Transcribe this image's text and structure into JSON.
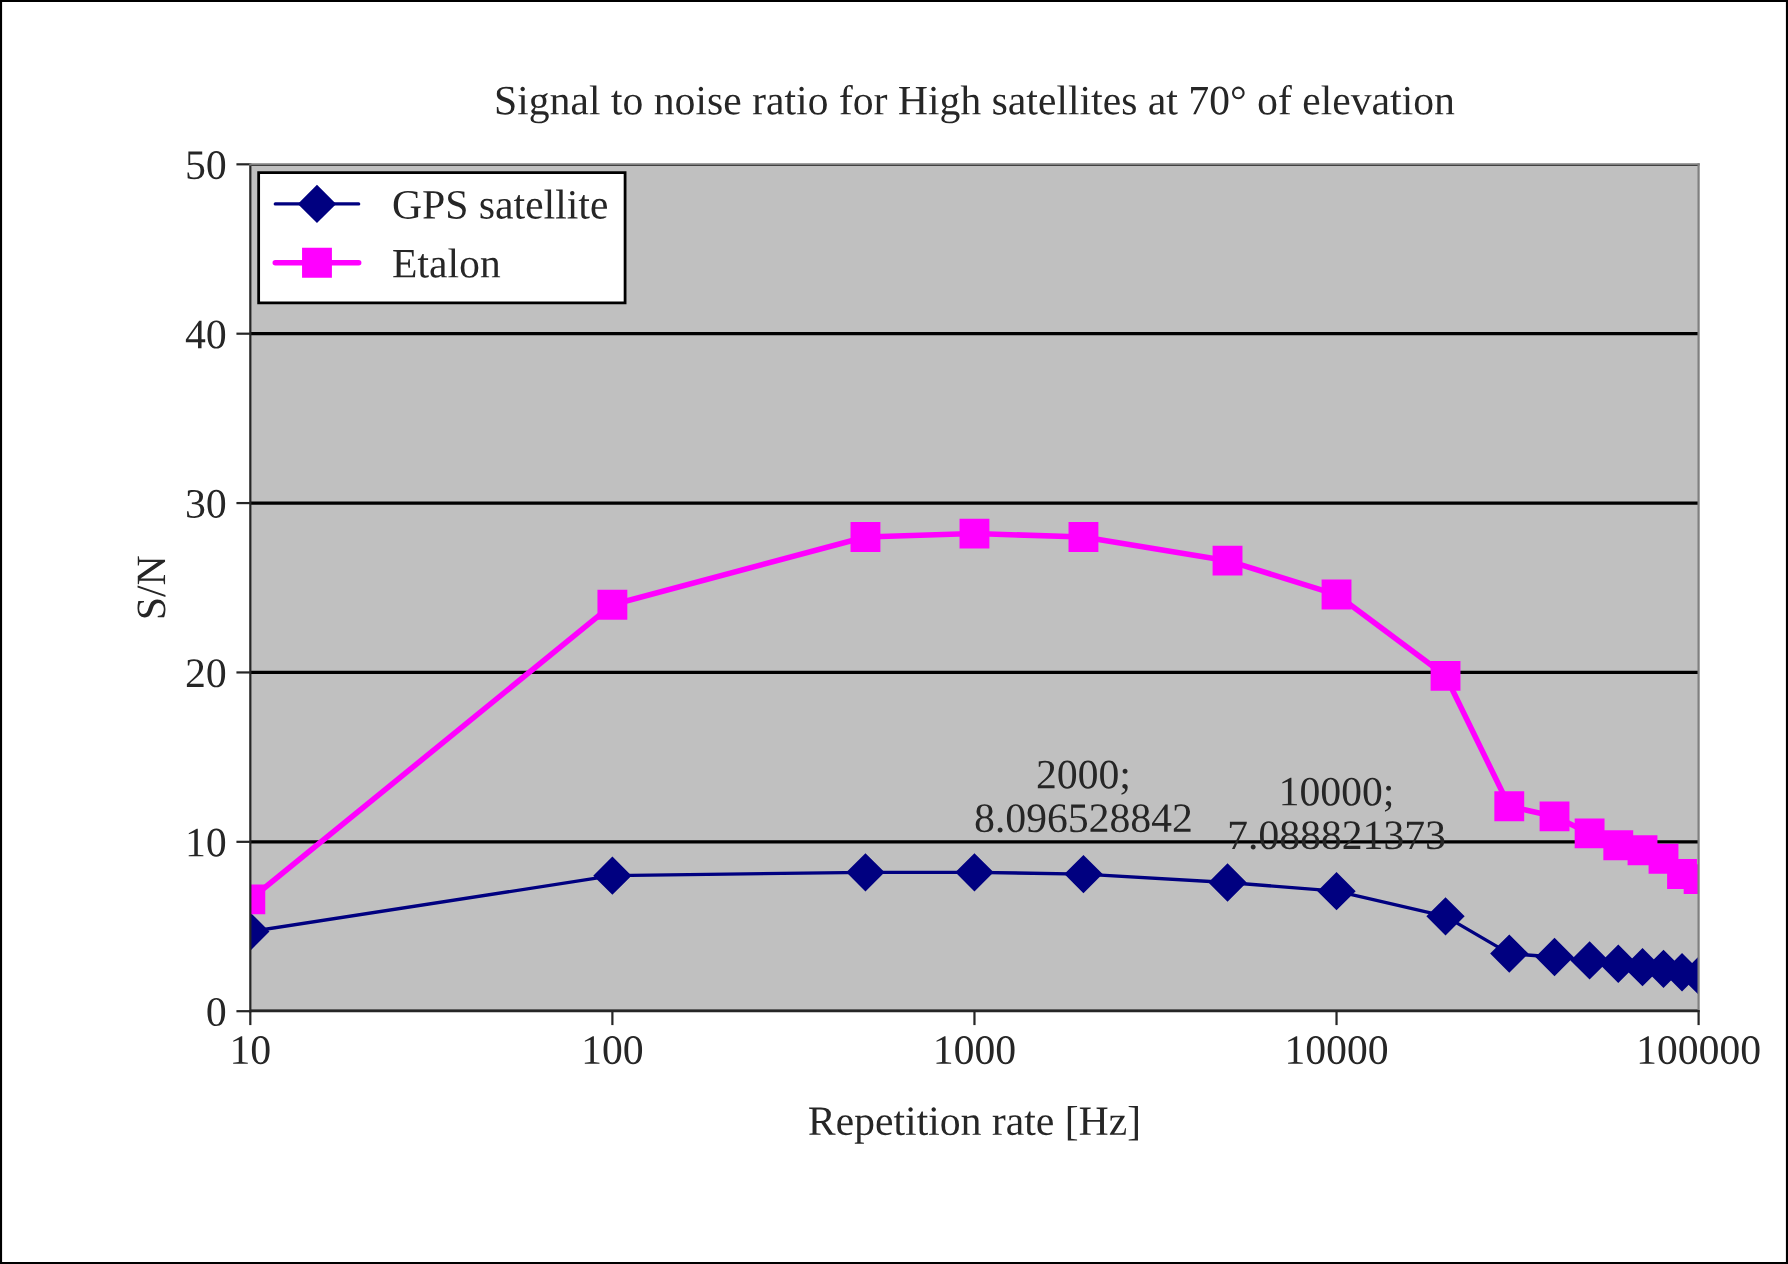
{
  "chart_data": {
    "type": "line",
    "title": "Signal to noise ratio for High satellites at 70° of elevation",
    "xlabel": "Repetition rate [Hz]",
    "ylabel": "S/N",
    "x": [
      10,
      100,
      500,
      1000,
      2000,
      5000,
      10000,
      20000,
      30000,
      40000,
      50000,
      60000,
      70000,
      80000,
      90000,
      100000
    ],
    "series": [
      {
        "name": "GPS satellite",
        "color": "#000080",
        "marker": "diamond",
        "values": [
          4.7,
          8.0,
          8.2,
          8.2,
          8.096528842,
          7.6,
          7.088821373,
          5.6,
          3.4,
          3.2,
          3.0,
          2.8,
          2.6,
          2.5,
          2.3,
          2.1
        ]
      },
      {
        "name": "Etalon",
        "color": "#ff00ff",
        "marker": "square",
        "values": [
          6.6,
          24.0,
          28.0,
          28.2,
          28.0,
          26.6,
          24.6,
          19.8,
          12.1,
          11.5,
          10.5,
          9.8,
          9.5,
          9.0,
          8.1,
          7.8
        ]
      }
    ],
    "annotations": [
      {
        "text": "2000;\n8.096528842",
        "x": 2000,
        "y": 8.096528842
      },
      {
        "text": "10000;\n7.088821373",
        "x": 10000,
        "y": 7.088821373
      }
    ],
    "log": "x",
    "xlim": [
      10,
      100000
    ],
    "xticks": [
      10,
      100,
      1000,
      10000,
      100000
    ],
    "ylim": [
      0,
      50
    ],
    "yticks": [
      0,
      10,
      20,
      30,
      40,
      50
    ],
    "grid": "y",
    "legend": "top left"
  }
}
